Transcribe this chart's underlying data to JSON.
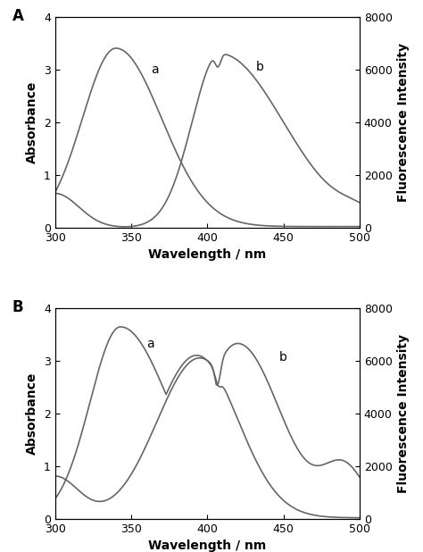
{
  "xlim": [
    300,
    500
  ],
  "ylim_abs": [
    0,
    4
  ],
  "ylim_fl": [
    0,
    8000
  ],
  "xlabel": "Wavelength / nm",
  "ylabel_left": "Absorbance",
  "ylabel_right": "Fluorescence Intensity",
  "xticks": [
    300,
    350,
    400,
    450,
    500
  ],
  "yticks_abs": [
    0,
    1,
    2,
    3,
    4
  ],
  "yticks_fl": [
    0,
    2000,
    4000,
    6000,
    8000
  ],
  "line_color": "#666666",
  "line_width": 1.2,
  "font_size_label": 10,
  "font_size_tick": 9,
  "font_size_panel": 12
}
